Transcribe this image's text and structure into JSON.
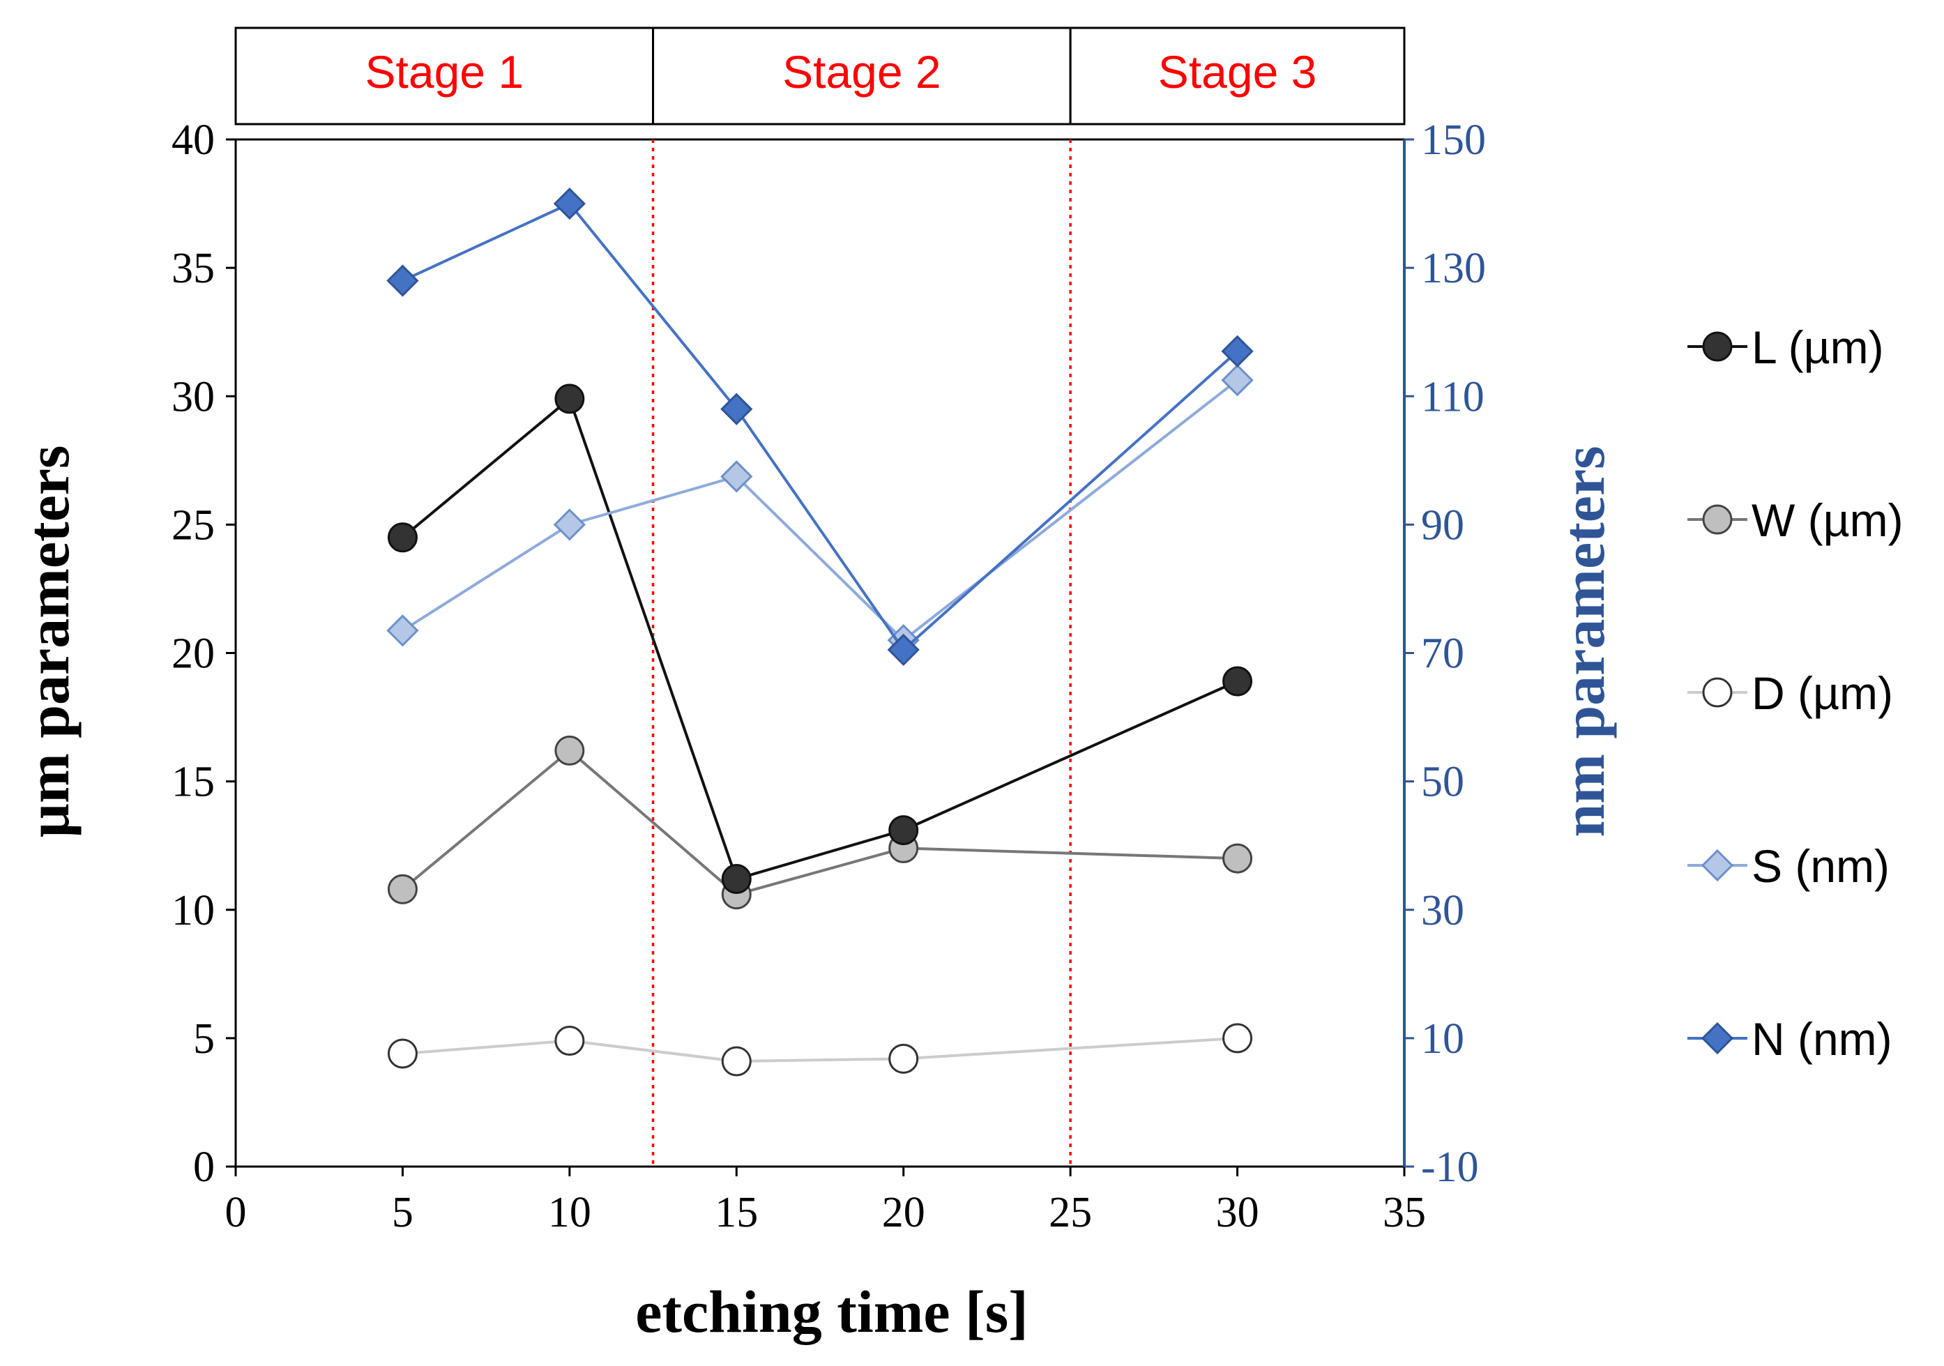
{
  "chart_data": {
    "type": "line",
    "xlabel": "etching time [s]",
    "ylabel_left": "µm parameters",
    "ylabel_right": "nm parameters",
    "xlim": [
      0,
      35
    ],
    "x_ticks": [
      "0",
      "5",
      "10",
      "15",
      "20",
      "25",
      "30",
      "35"
    ],
    "ylim_left": [
      0,
      40
    ],
    "y_ticks_left": [
      "0",
      "5",
      "10",
      "15",
      "20",
      "25",
      "30",
      "35",
      "40"
    ],
    "ylim_right": [
      -10,
      150
    ],
    "y_ticks_right": [
      "-10",
      "10",
      "30",
      "50",
      "70",
      "90",
      "110",
      "130",
      "150"
    ],
    "stage_boundaries": [
      12.5,
      25
    ],
    "stages": [
      {
        "label": "Stage 1",
        "x_start": 0,
        "x_end": 12.5
      },
      {
        "label": "Stage 2",
        "x_start": 12.5,
        "x_end": 25
      },
      {
        "label": "Stage 3",
        "x_start": 25,
        "x_end": 35
      }
    ],
    "series": [
      {
        "name": "L (µm)",
        "axis": "left",
        "marker": "circle",
        "line_color": "#111111",
        "fill": "#333333",
        "stroke": "#111111",
        "x": [
          5,
          10,
          15,
          20,
          30
        ],
        "y": [
          24.5,
          29.9,
          11.2,
          13.1,
          18.9
        ]
      },
      {
        "name": "W (µm)",
        "axis": "left",
        "marker": "circle",
        "line_color": "#777777",
        "fill": "#bfbfbf",
        "stroke": "#444444",
        "x": [
          5,
          10,
          15,
          20,
          30
        ],
        "y": [
          10.8,
          16.2,
          10.6,
          12.4,
          12.0
        ]
      },
      {
        "name": "D (µm)",
        "axis": "left",
        "marker": "circle",
        "line_color": "#cccccc",
        "fill": "#ffffff",
        "stroke": "#333333",
        "x": [
          5,
          10,
          15,
          20,
          30
        ],
        "y": [
          4.4,
          4.9,
          4.1,
          4.2,
          5.0
        ]
      },
      {
        "name": "S (nm)",
        "axis": "right",
        "marker": "diamond",
        "line_color": "#8eaadb",
        "fill": "#b4c7e7",
        "stroke": "#6d8fc9",
        "x": [
          5,
          10,
          15,
          20,
          30
        ],
        "y": [
          73.5,
          90,
          97.5,
          72,
          112.5
        ]
      },
      {
        "name": "N (nm)",
        "axis": "right",
        "marker": "diamond",
        "line_color": "#4472c4",
        "fill": "#4472c4",
        "stroke": "#2f5597",
        "x": [
          5,
          10,
          15,
          20,
          30
        ],
        "y": [
          128,
          140,
          108,
          70.5,
          117
        ]
      }
    ],
    "colors": {
      "stage_text": "#ff0000",
      "boundary": "#ff0000",
      "right_axis": "#2f5597",
      "left_axis": "#000000"
    }
  }
}
